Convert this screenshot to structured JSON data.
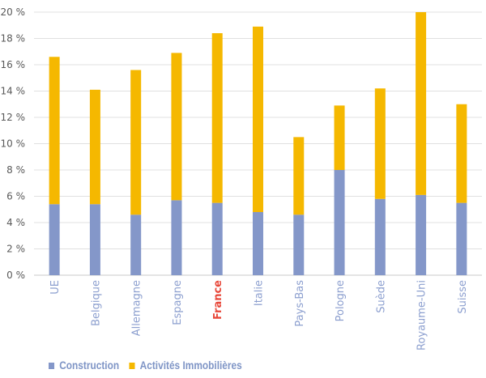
{
  "chart_data": {
    "type": "bar",
    "stacked": true,
    "categories": [
      "UE",
      "Belgique",
      "Allemagne",
      "Espagne",
      "France",
      "Italie",
      "Pays-Bas",
      "Pologne",
      "Suède",
      "Royaume-Uni",
      "Suisse"
    ],
    "highlight_category": "France",
    "series": [
      {
        "name": "Construction",
        "color": "#8497c9",
        "values": [
          5.4,
          5.4,
          4.6,
          5.7,
          5.5,
          4.8,
          4.6,
          8.0,
          5.8,
          6.1,
          5.5
        ]
      },
      {
        "name": "Activités Immobilières",
        "color": "#f5b800",
        "values": [
          11.2,
          8.7,
          11.0,
          11.2,
          12.9,
          14.1,
          5.9,
          4.9,
          8.4,
          13.9,
          7.5
        ]
      }
    ],
    "y_tick_labels": [
      "0 %",
      "2 %",
      "4 %",
      "6 %",
      "8 %",
      "10 %",
      "12 %",
      "14 %",
      "16 %",
      "18 %",
      "20 %"
    ],
    "ylim": [
      0,
      20
    ],
    "ytick_step": 2,
    "grid": true,
    "legend_position": "bottom-left",
    "colors": {
      "grid": "#e0e0e0",
      "axis": "#c8c8c8",
      "category_label": "#8c9fcf",
      "highlight_label": "#e8483a",
      "tick_label": "#595959"
    }
  }
}
